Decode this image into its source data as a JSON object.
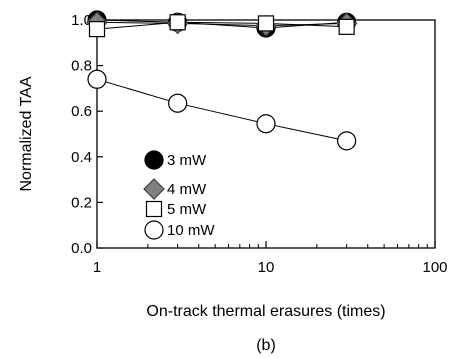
{
  "chart_data": {
    "type": "scatter",
    "xlabel": "On-track thermal erasures (times)",
    "ylabel": "Normalized TAA",
    "caption": "(b)",
    "x_scale": "log",
    "xlim": [
      1,
      100
    ],
    "ylim": [
      0.0,
      1.0
    ],
    "x_ticks": [
      1,
      10,
      100
    ],
    "x_tick_labels": [
      "1",
      "10",
      "100"
    ],
    "y_ticks": [
      0.0,
      0.2,
      0.4,
      0.6,
      0.8,
      1.0
    ],
    "y_tick_labels": [
      "0.0",
      "0.2",
      "0.4",
      "0.6",
      "0.8",
      "1.0"
    ],
    "grid": false,
    "legend_position": "lower-left",
    "series": [
      {
        "name": "3 mW",
        "marker": "circle",
        "fill": "#000000",
        "stroke": "#000000",
        "x": [
          1,
          3,
          10,
          30
        ],
        "y": [
          1.0,
          0.99,
          0.965,
          0.99
        ]
      },
      {
        "name": "4 mW",
        "marker": "diamond",
        "fill": "#808080",
        "stroke": "#404040",
        "x": [
          1,
          3,
          10,
          30
        ],
        "y": [
          0.99,
          0.985,
          0.975,
          0.985
        ]
      },
      {
        "name": "5 mW",
        "marker": "square",
        "fill": "#ffffff",
        "stroke": "#000000",
        "x": [
          1,
          3,
          10,
          30
        ],
        "y": [
          0.96,
          0.99,
          0.985,
          0.97
        ]
      },
      {
        "name": "10 mW",
        "marker": "circle",
        "fill": "#ffffff",
        "stroke": "#000000",
        "x": [
          1,
          3,
          10,
          30
        ],
        "y": [
          0.74,
          0.635,
          0.545,
          0.47
        ]
      }
    ]
  }
}
